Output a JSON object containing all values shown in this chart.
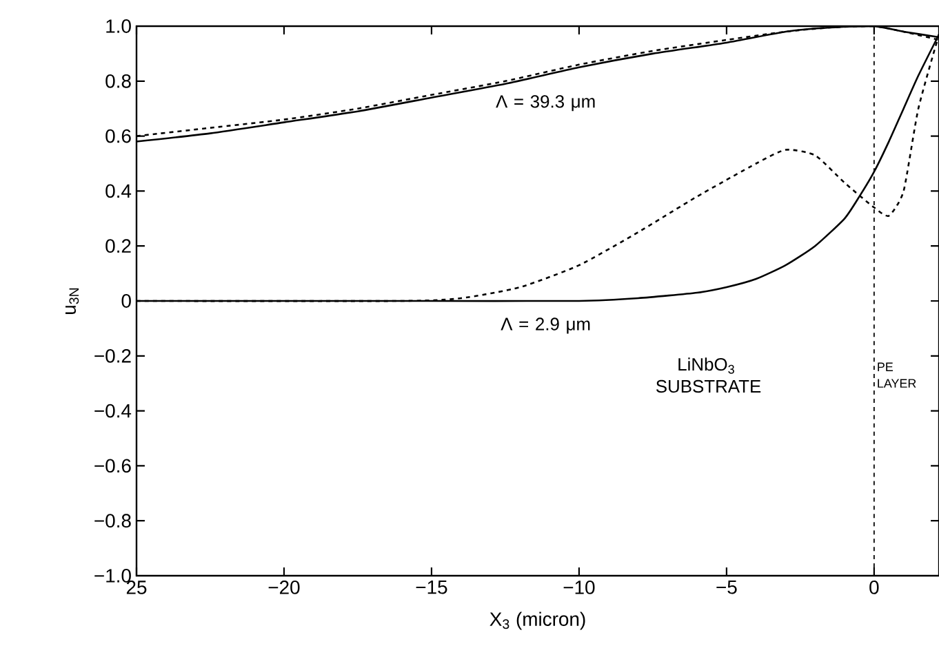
{
  "chart_data": {
    "type": "line",
    "xlabel": "X$_{3}$ (micron)",
    "ylabel": "u$_{3N}$",
    "xlim": [
      -25,
      2.2
    ],
    "ylim": [
      -1.0,
      1.0
    ],
    "xticks": [
      {
        "value": -25,
        "label": "25"
      },
      {
        "value": -20,
        "label": "−20"
      },
      {
        "value": -15,
        "label": "−15"
      },
      {
        "value": -10,
        "label": "−10"
      },
      {
        "value": -5,
        "label": "−5"
      },
      {
        "value": 0,
        "label": "0"
      }
    ],
    "yticks": [
      {
        "value": -1.0,
        "label": "−1.0"
      },
      {
        "value": -0.8,
        "label": "−0.8"
      },
      {
        "value": -0.6,
        "label": "−0.6"
      },
      {
        "value": -0.4,
        "label": "−0.4"
      },
      {
        "value": -0.2,
        "label": "−0.2"
      },
      {
        "value": 0,
        "label": "0"
      },
      {
        "value": 0.2,
        "label": "0.2"
      },
      {
        "value": 0.4,
        "label": "0.4"
      },
      {
        "value": 0.6,
        "label": "0.6"
      },
      {
        "value": 0.8,
        "label": "0.8"
      },
      {
        "value": 1.0,
        "label": "1.0"
      }
    ],
    "series": [
      {
        "color": "#000000",
        "line_style": "solid",
        "x": [
          -25,
          -22.5,
          -20,
          -17.5,
          -15,
          -12.5,
          -10,
          -7.5,
          -5,
          -3,
          -1.5,
          0,
          1,
          2.2
        ],
        "values": [
          0.58,
          0.61,
          0.65,
          0.69,
          0.74,
          0.79,
          0.85,
          0.9,
          0.94,
          0.98,
          0.995,
          1.0,
          0.98,
          0.96
        ]
      },
      {
        "color": "#000000",
        "line_style": "dashed",
        "x": [
          -25,
          -22.5,
          -20,
          -17.5,
          -15,
          -12.5,
          -10,
          -7.5,
          -5,
          -3,
          -1.5,
          0,
          1,
          2.2
        ],
        "values": [
          0.6,
          0.63,
          0.66,
          0.7,
          0.75,
          0.8,
          0.86,
          0.91,
          0.95,
          0.98,
          0.995,
          1.0,
          0.98,
          0.95
        ]
      },
      {
        "color": "#000000",
        "line_style": "solid",
        "x": [
          -25,
          -15,
          -10,
          -8,
          -6,
          -5,
          -4,
          -3,
          -2,
          -1,
          -0.5,
          0,
          0.5,
          1,
          1.5,
          2.2
        ],
        "values": [
          0,
          0,
          0,
          0.01,
          0.03,
          0.05,
          0.08,
          0.13,
          0.2,
          0.3,
          0.38,
          0.47,
          0.58,
          0.7,
          0.82,
          0.97
        ]
      },
      {
        "color": "#000000",
        "line_style": "dashed",
        "x": [
          -25,
          -16,
          -14,
          -12,
          -10,
          -8,
          -6,
          -4,
          -3,
          -2,
          -1,
          0,
          0.5,
          1,
          1.5,
          2.2
        ],
        "values": [
          0,
          0,
          0.01,
          0.05,
          0.13,
          0.25,
          0.38,
          0.5,
          0.55,
          0.53,
          0.43,
          0.34,
          0.31,
          0.4,
          0.7,
          0.97
        ]
      }
    ],
    "ref_lines": [
      {
        "axis": "x",
        "value": 0,
        "line_style": "dashed",
        "color": "#000000"
      }
    ],
    "annotations": [
      "Λ = 39.3 μm",
      "Λ = 2.9 μm",
      "LiNbO$_{3}$ SUBSTRATE",
      "PE LAYER"
    ]
  }
}
